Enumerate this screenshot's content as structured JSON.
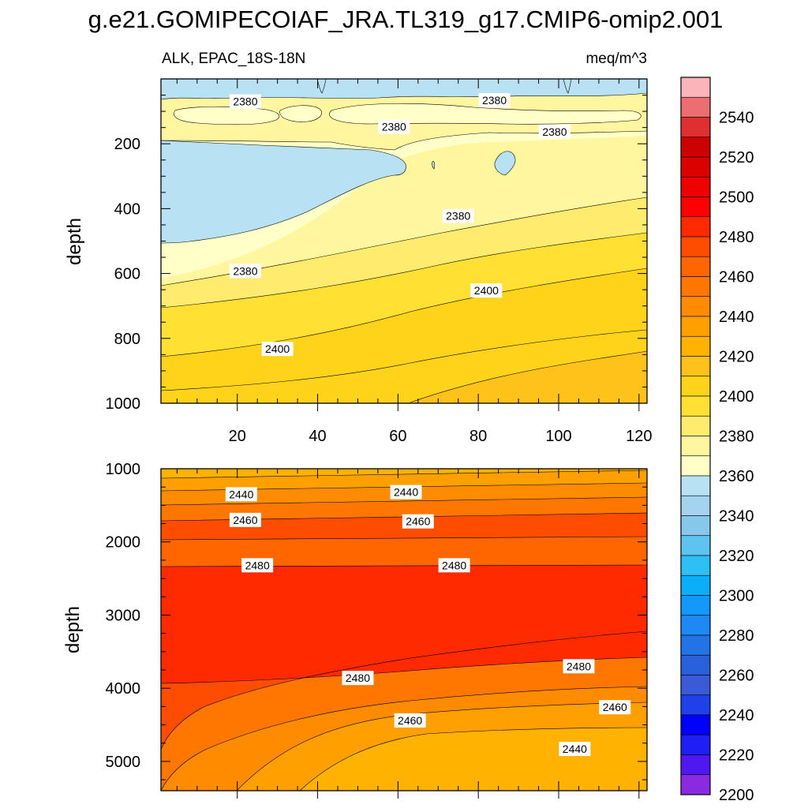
{
  "chart_data": [
    {
      "type": "contour",
      "panel": "upper",
      "title": "g.e21.GOMIPECOIAF_JRA.TL319_g17.CMIP6-omip2.001",
      "left_string": "ALK, EPAC_18S-18N",
      "right_string": "meq/m^3",
      "xlabel": "",
      "ylabel": "depth",
      "xlim": [
        1,
        122
      ],
      "ylim": [
        1000,
        0
      ],
      "x_ticks": [
        20,
        40,
        60,
        80,
        100,
        120
      ],
      "y_ticks": [
        200,
        400,
        600,
        800,
        1000
      ],
      "contour_labels": [
        {
          "text": "2380",
          "x": 22,
          "y": 72
        },
        {
          "text": "2380",
          "x": 84,
          "y": 68
        },
        {
          "text": "2380",
          "x": 59,
          "y": 150
        },
        {
          "text": "2380",
          "x": 99,
          "y": 165
        },
        {
          "text": "2380",
          "x": 75,
          "y": 425
        },
        {
          "text": "2380",
          "x": 22,
          "y": 595
        },
        {
          "text": "2400",
          "x": 82,
          "y": 655
        },
        {
          "text": "2400",
          "x": 30,
          "y": 835
        }
      ]
    },
    {
      "type": "contour",
      "panel": "lower",
      "xlabel": "",
      "ylabel": "depth",
      "xlim": [
        1,
        122
      ],
      "ylim": [
        5400,
        1000
      ],
      "y_ticks": [
        1000,
        2000,
        3000,
        4000,
        5000
      ],
      "contour_labels": [
        {
          "text": "2440",
          "x": 21,
          "y": 1360
        },
        {
          "text": "2440",
          "x": 62,
          "y": 1330
        },
        {
          "text": "2460",
          "x": 22,
          "y": 1710
        },
        {
          "text": "2460",
          "x": 65,
          "y": 1730
        },
        {
          "text": "2480",
          "x": 25,
          "y": 2330
        },
        {
          "text": "2480",
          "x": 74,
          "y": 2330
        },
        {
          "text": "2480",
          "x": 50,
          "y": 3870
        },
        {
          "text": "2480",
          "x": 105,
          "y": 3710
        },
        {
          "text": "2460",
          "x": 63,
          "y": 4450
        },
        {
          "text": "2460",
          "x": 114,
          "y": 4270
        },
        {
          "text": "2440",
          "x": 104,
          "y": 4840
        }
      ]
    }
  ],
  "colorbar": {
    "labels": [
      "2540",
      "2520",
      "2500",
      "2480",
      "2460",
      "2440",
      "2420",
      "2400",
      "2380",
      "2360",
      "2340",
      "2320",
      "2300",
      "2280",
      "2260",
      "2240",
      "2220",
      "2200"
    ],
    "colors": [
      "#fbb4b9",
      "#ec6e70",
      "#de3030",
      "#cd0000",
      "#dd0000",
      "#ee0000",
      "#ff0000",
      "#ff2a00",
      "#ff4d00",
      "#ff6600",
      "#ff7700",
      "#ff8c00",
      "#ffa000",
      "#ffb300",
      "#ffc21a",
      "#ffd31a",
      "#ffe033",
      "#ffec6e",
      "#fff69f",
      "#ffffc8",
      "#b9e1f4",
      "#a3d3ef",
      "#86c8ec",
      "#5dc3ef",
      "#2ec0f5",
      "#0aaef9",
      "#1398fb",
      "#1e88f5",
      "#2173e6",
      "#2a60dc",
      "#3a5ad8",
      "#2040ea",
      "#0000ff",
      "#1f1ef5",
      "#5018f0",
      "#8a2be2"
    ]
  }
}
